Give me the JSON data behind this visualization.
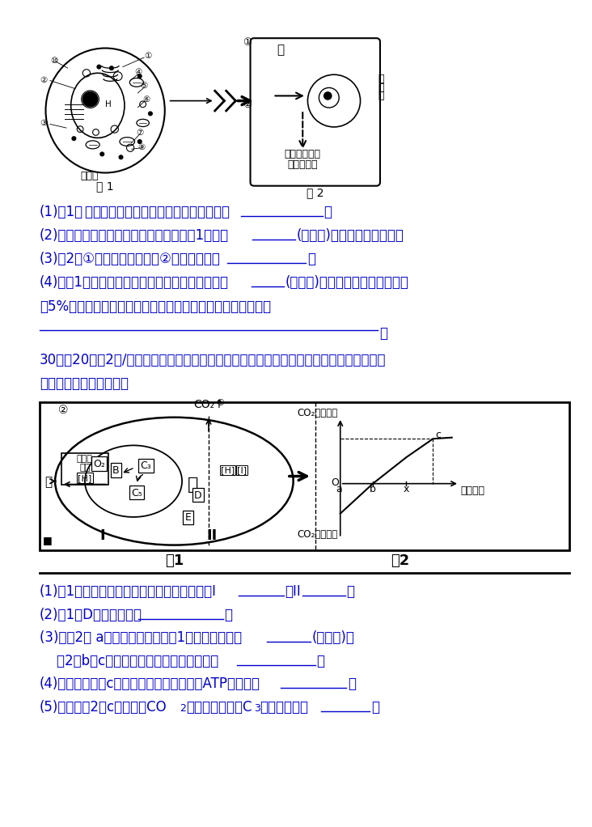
{
  "bg_color": "#ffffff",
  "text_color": "#0000cd",
  "black_color": "#000000",
  "body_fontsize": 12,
  "q30_3_text": "(3)在图2的 a状态时，可以发生图1的哪一生理过程",
  "q30_3b_text": "    图2中b～c时，限制光合作用的主要因素是"
}
